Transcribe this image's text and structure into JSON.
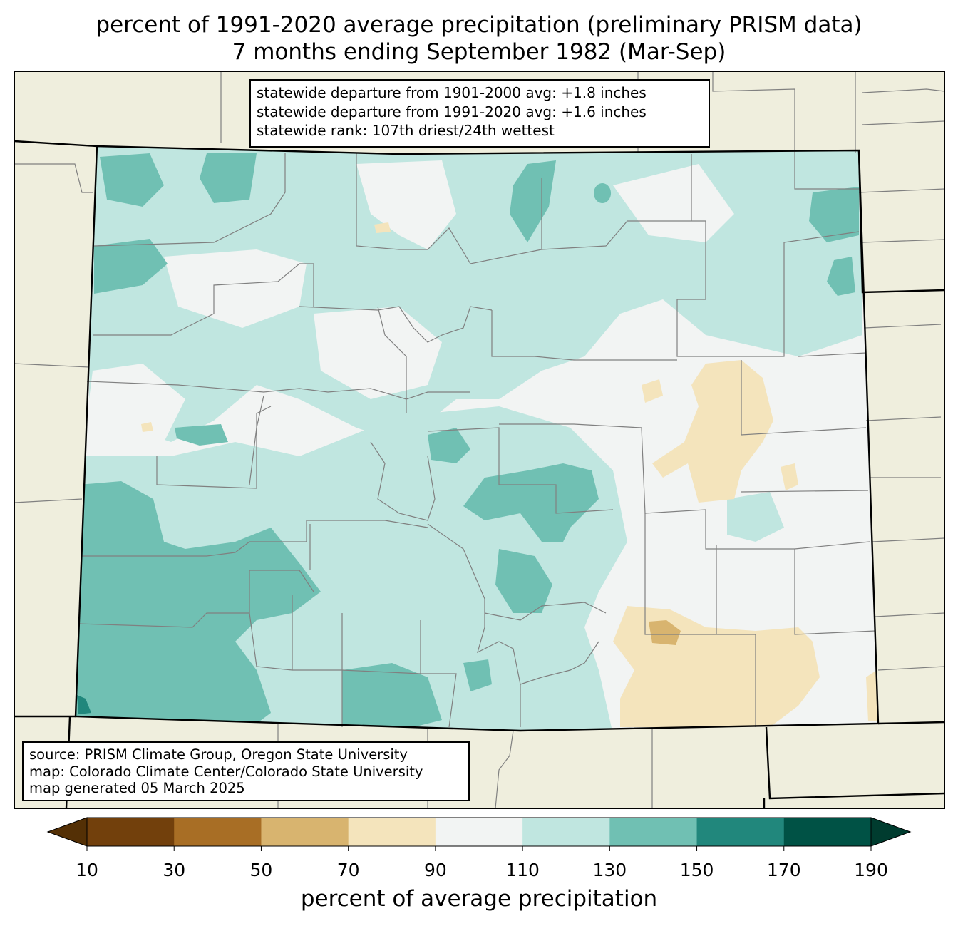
{
  "title": {
    "line1": "percent of 1991-2020 average precipitation (preliminary PRISM data)",
    "line2": "7 months ending September 1982 (Mar-Sep)"
  },
  "stats_box": {
    "line1": "statewide departure from 1901-2000 avg: +1.8 inches",
    "line2": "statewide departure from 1991-2020 avg: +1.6 inches",
    "line3": "statewide rank: 107th driest/24th wettest"
  },
  "source_box": {
    "line1": "source: PRISM Climate Group, Oregon State University",
    "line2": "map: Colorado Climate Center/Colorado State University",
    "line3": "map generated 05 March 2025"
  },
  "colorbar": {
    "label": "percent of average precipitation",
    "ticks": [
      "10",
      "30",
      "50",
      "70",
      "90",
      "110",
      "130",
      "150",
      "170",
      "190"
    ],
    "colors": [
      "#543005",
      "#72400c",
      "#a86e25",
      "#d8b46f",
      "#f4e4bc",
      "#f2f4f3",
      "#c0e6e0",
      "#70c0b3",
      "#21877c",
      "#005245",
      "#003c2f"
    ]
  },
  "map_colors": {
    "background_states": "#efeedd",
    "county_lines": "#808080",
    "state_lines": "#000000"
  }
}
